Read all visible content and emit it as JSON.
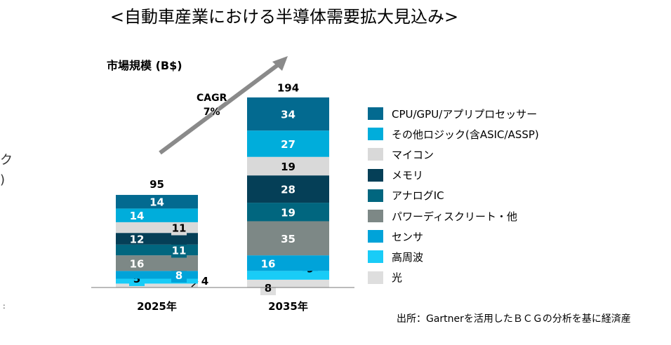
{
  "title": "<自動車産業における半導体需要拡大見込み>",
  "chart_data": {
    "type": "bar",
    "stacked": true,
    "ylabel": "市場規模 (B$)",
    "categories": [
      "2025年",
      "2035年"
    ],
    "totals": [
      95,
      194
    ],
    "annotation": {
      "line1": "CAGR",
      "line2": "7%"
    },
    "legend_position": "right",
    "series": [
      {
        "name": "CPU/GPU/アプリプロセッサー",
        "color": "#036a90",
        "values": [
          14,
          34
        ]
      },
      {
        "name": "その他ロジック(含ASIC/ASSP)",
        "color": "#00addb",
        "values": [
          14,
          27
        ]
      },
      {
        "name": "マイコン",
        "color": "#d9d9d9",
        "values": [
          11,
          19
        ]
      },
      {
        "name": "メモリ",
        "color": "#053f57",
        "values": [
          12,
          28
        ]
      },
      {
        "name": "アナログIC",
        "color": "#01667f",
        "values": [
          11,
          19
        ]
      },
      {
        "name": "パワーディスクリート・他",
        "color": "#7d8886",
        "values": [
          16,
          35
        ]
      },
      {
        "name": "センサ",
        "color": "#00a3d9",
        "values": [
          8,
          16
        ]
      },
      {
        "name": "高周波",
        "color": "#19ccf7",
        "values": [
          5,
          9
        ]
      },
      {
        "name": "光",
        "color": "#dedede",
        "values": [
          4,
          8
        ]
      }
    ]
  },
  "left_fragments": [
    "ク",
    ")",
    ":"
  ],
  "source": "出所：Gartnerを活用したＢＣＧの分析を基に経済産"
}
